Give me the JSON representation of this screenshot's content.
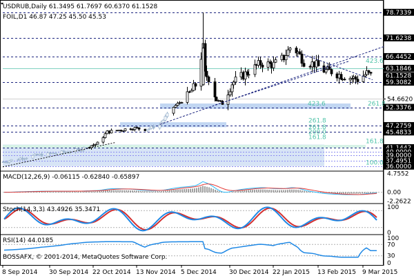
{
  "header": {
    "symbol_line": "USDRUB,Daily  61.3495 61.7697 60.6370 61.1528",
    "indicator_line": "FOIL,D1 46.87 47.25 45.50 45.53"
  },
  "colors": {
    "background": "#ffffff",
    "grid": "#c0c0c0",
    "candle_dark": "#000000",
    "candle_light": "#9fb6cf",
    "support_band": "#a6c4ec",
    "fib_label": "#4fc3a8",
    "channel_line": "#1a237e",
    "level_line": "#1a237e",
    "price_tag_bg": "#000000",
    "price_tag_text": "#ffffff",
    "macd_signal": "#e53935",
    "macd_main": "#29b6f6",
    "stoch_main": "#1e88e5",
    "stoch_signal": "#d32f2f",
    "rsi_line": "#1e88e5"
  },
  "chart_data": [
    {
      "type": "candlestick",
      "title": "USDRUB,Daily",
      "ylim": [
        35.0,
        81.0
      ],
      "price_levels": [
        "78.7339",
        "71.6238",
        "66.4452",
        "63.1846",
        "61.1528",
        "59.3082",
        "54.6620",
        "52.3376",
        "47.2759",
        "45.4833",
        "41.1442",
        "40.0000",
        "39.0000",
        "37.4951",
        "36.0000"
      ],
      "fib_labels": [
        "423.6",
        "423.6",
        "261.8",
        "261.8",
        "261.8",
        "200.0",
        "161.8",
        "161.8",
        "100.0"
      ],
      "x_ticks": [
        "8 Sep 2014",
        "30 Sep 2014",
        "22 Oct 2014",
        "13 Nov 2014",
        "5 Dec 2014",
        "30 Dec 2014",
        "22 Jan 2015",
        "13 Feb 2015",
        "9 Mar 2015"
      ],
      "close_path": [
        {
          "date": "2014-09-08",
          "close": 37.2
        },
        {
          "date": "2014-09-17",
          "close": 38.3
        },
        {
          "date": "2014-09-26",
          "close": 39.2
        },
        {
          "date": "2014-10-06",
          "close": 39.8
        },
        {
          "date": "2014-10-15",
          "close": 40.6
        },
        {
          "date": "2014-10-24",
          "close": 42.3
        },
        {
          "date": "2014-10-29",
          "close": 45.5
        },
        {
          "date": "2014-11-04",
          "close": 46.0
        },
        {
          "date": "2014-11-11",
          "close": 46.6
        },
        {
          "date": "2014-11-17",
          "close": 46.2
        },
        {
          "date": "2014-11-24",
          "close": 47.4
        },
        {
          "date": "2014-12-01",
          "close": 52.4
        },
        {
          "date": "2014-12-08",
          "close": 55.4
        },
        {
          "date": "2014-12-12",
          "close": 58.5
        },
        {
          "date": "2014-12-16",
          "close": 69.0
        },
        {
          "date": "2014-12-17",
          "close": 61.5
        },
        {
          "date": "2014-12-19",
          "close": 60.5
        },
        {
          "date": "2014-12-23",
          "close": 54.3
        },
        {
          "date": "2014-12-26",
          "close": 53.4
        },
        {
          "date": "2014-12-31",
          "close": 59.0
        },
        {
          "date": "2015-01-08",
          "close": 62.0
        },
        {
          "date": "2015-01-15",
          "close": 64.5
        },
        {
          "date": "2015-01-22",
          "close": 64.2
        },
        {
          "date": "2015-01-27",
          "close": 66.2
        },
        {
          "date": "2015-01-30",
          "close": 68.9
        },
        {
          "date": "2015-02-03",
          "close": 67.6
        },
        {
          "date": "2015-02-06",
          "close": 65.0
        },
        {
          "date": "2015-02-11",
          "close": 64.4
        },
        {
          "date": "2015-02-16",
          "close": 62.6
        },
        {
          "date": "2015-02-20",
          "close": 62.3
        },
        {
          "date": "2015-02-25",
          "close": 61.2
        },
        {
          "date": "2015-03-03",
          "close": 60.5
        },
        {
          "date": "2015-03-06",
          "close": 60.1
        },
        {
          "date": "2015-03-11",
          "close": 61.8
        },
        {
          "date": "2015-03-13",
          "close": 61.15
        }
      ]
    },
    {
      "type": "line",
      "title": "MACD(12,26,9) -0.06115 -0.62840 -0.65897",
      "tick_labels": [
        "4.7552",
        "0.00",
        "-2.2622"
      ],
      "ylim": [
        -2.5,
        5.0
      ]
    },
    {
      "type": "line",
      "title": "Stoch(14,3,3) 43.4926 35.3471",
      "tick_labels": [
        "100",
        "0"
      ],
      "ylim": [
        0,
        100
      ]
    },
    {
      "type": "line",
      "title": "RSI(14) 44.0185",
      "tick_labels": [
        "100",
        "70",
        "30",
        "0"
      ],
      "ylim": [
        0,
        100
      ]
    }
  ],
  "footer": {
    "copyright": "BOSSAFX, © 2001-2014, MetaQuotes Software Corp."
  }
}
